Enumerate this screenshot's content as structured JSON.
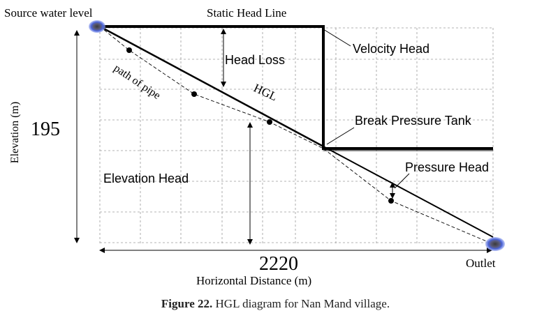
{
  "labels": {
    "source_water_level": "Source water level",
    "static_head_line": "Static Head Line",
    "velocity_head": "Velocity Head",
    "head_loss": "Head Loss",
    "hgl": "HGL",
    "path_of_pipe": "path of pipe",
    "break_pressure_tank": "Break Pressure Tank",
    "pressure_head": "Pressure Head",
    "elevation_head": "Elevation Head",
    "outlet": "Outlet"
  },
  "axes": {
    "y_label": "Elevation (m)",
    "y_value": "195",
    "x_value": "2220",
    "x_label": "Horizontal Distance (m)"
  },
  "caption": {
    "label": "Figure 22.",
    "text": "HGL diagram for Nan Mand village."
  },
  "colors": {
    "endpoint_glow": "#4a63d8",
    "endpoint_core": "#555555",
    "line": "#000000",
    "grid": "#9a9a9a"
  }
}
